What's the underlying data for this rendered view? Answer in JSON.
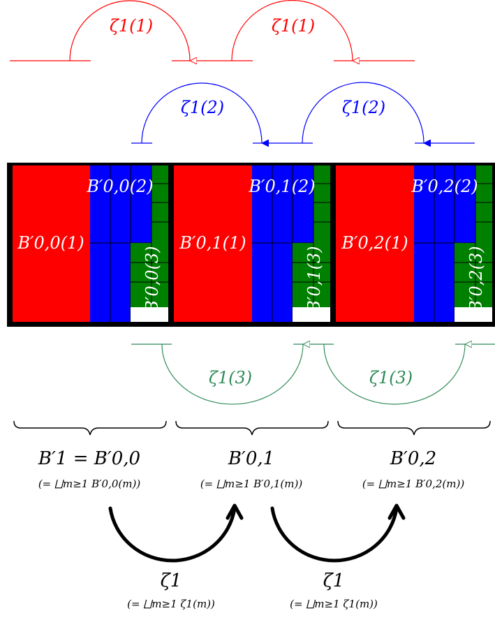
{
  "colors": {
    "red": "#ff0000",
    "blue": "#0000ff",
    "green": "#008000",
    "greenArc": "#2e8b57",
    "frame": "#000000",
    "white": "#ffffff"
  },
  "arcs": {
    "red": {
      "label": "ζ1(1)"
    },
    "blue": {
      "label": "ζ1(2)"
    },
    "green": {
      "label": "ζ1(3)"
    }
  },
  "blocks": [
    {
      "label1": "B′0,0(1)",
      "label2": "B′0,0(2)",
      "label3": "B′0,0(3)",
      "bottomTitle": "B′1 = B′0,0",
      "bottomSub": "(= ⨆m≥1 B′0,0(m))"
    },
    {
      "label1": "B′0,1(1)",
      "label2": "B′0,1(2)",
      "label3": "B′0,1(3)",
      "bottomTitle": "B′0,1",
      "bottomSub": "(= ⨆m≥1 B′0,1(m))"
    },
    {
      "label1": "B′0,2(1)",
      "label2": "B′0,2(2)",
      "label3": "B′0,2(3)",
      "bottomTitle": "B′0,2",
      "bottomSub": "(= ⨆m≥1 B′0,2(m))"
    }
  ],
  "bottomArcs": [
    {
      "label": "ζ1",
      "sub": "(= ⨆m≥1 ζ1(m))"
    },
    {
      "label": "ζ1",
      "sub": "(= ⨆m≥1 ζ1(m))"
    }
  ]
}
